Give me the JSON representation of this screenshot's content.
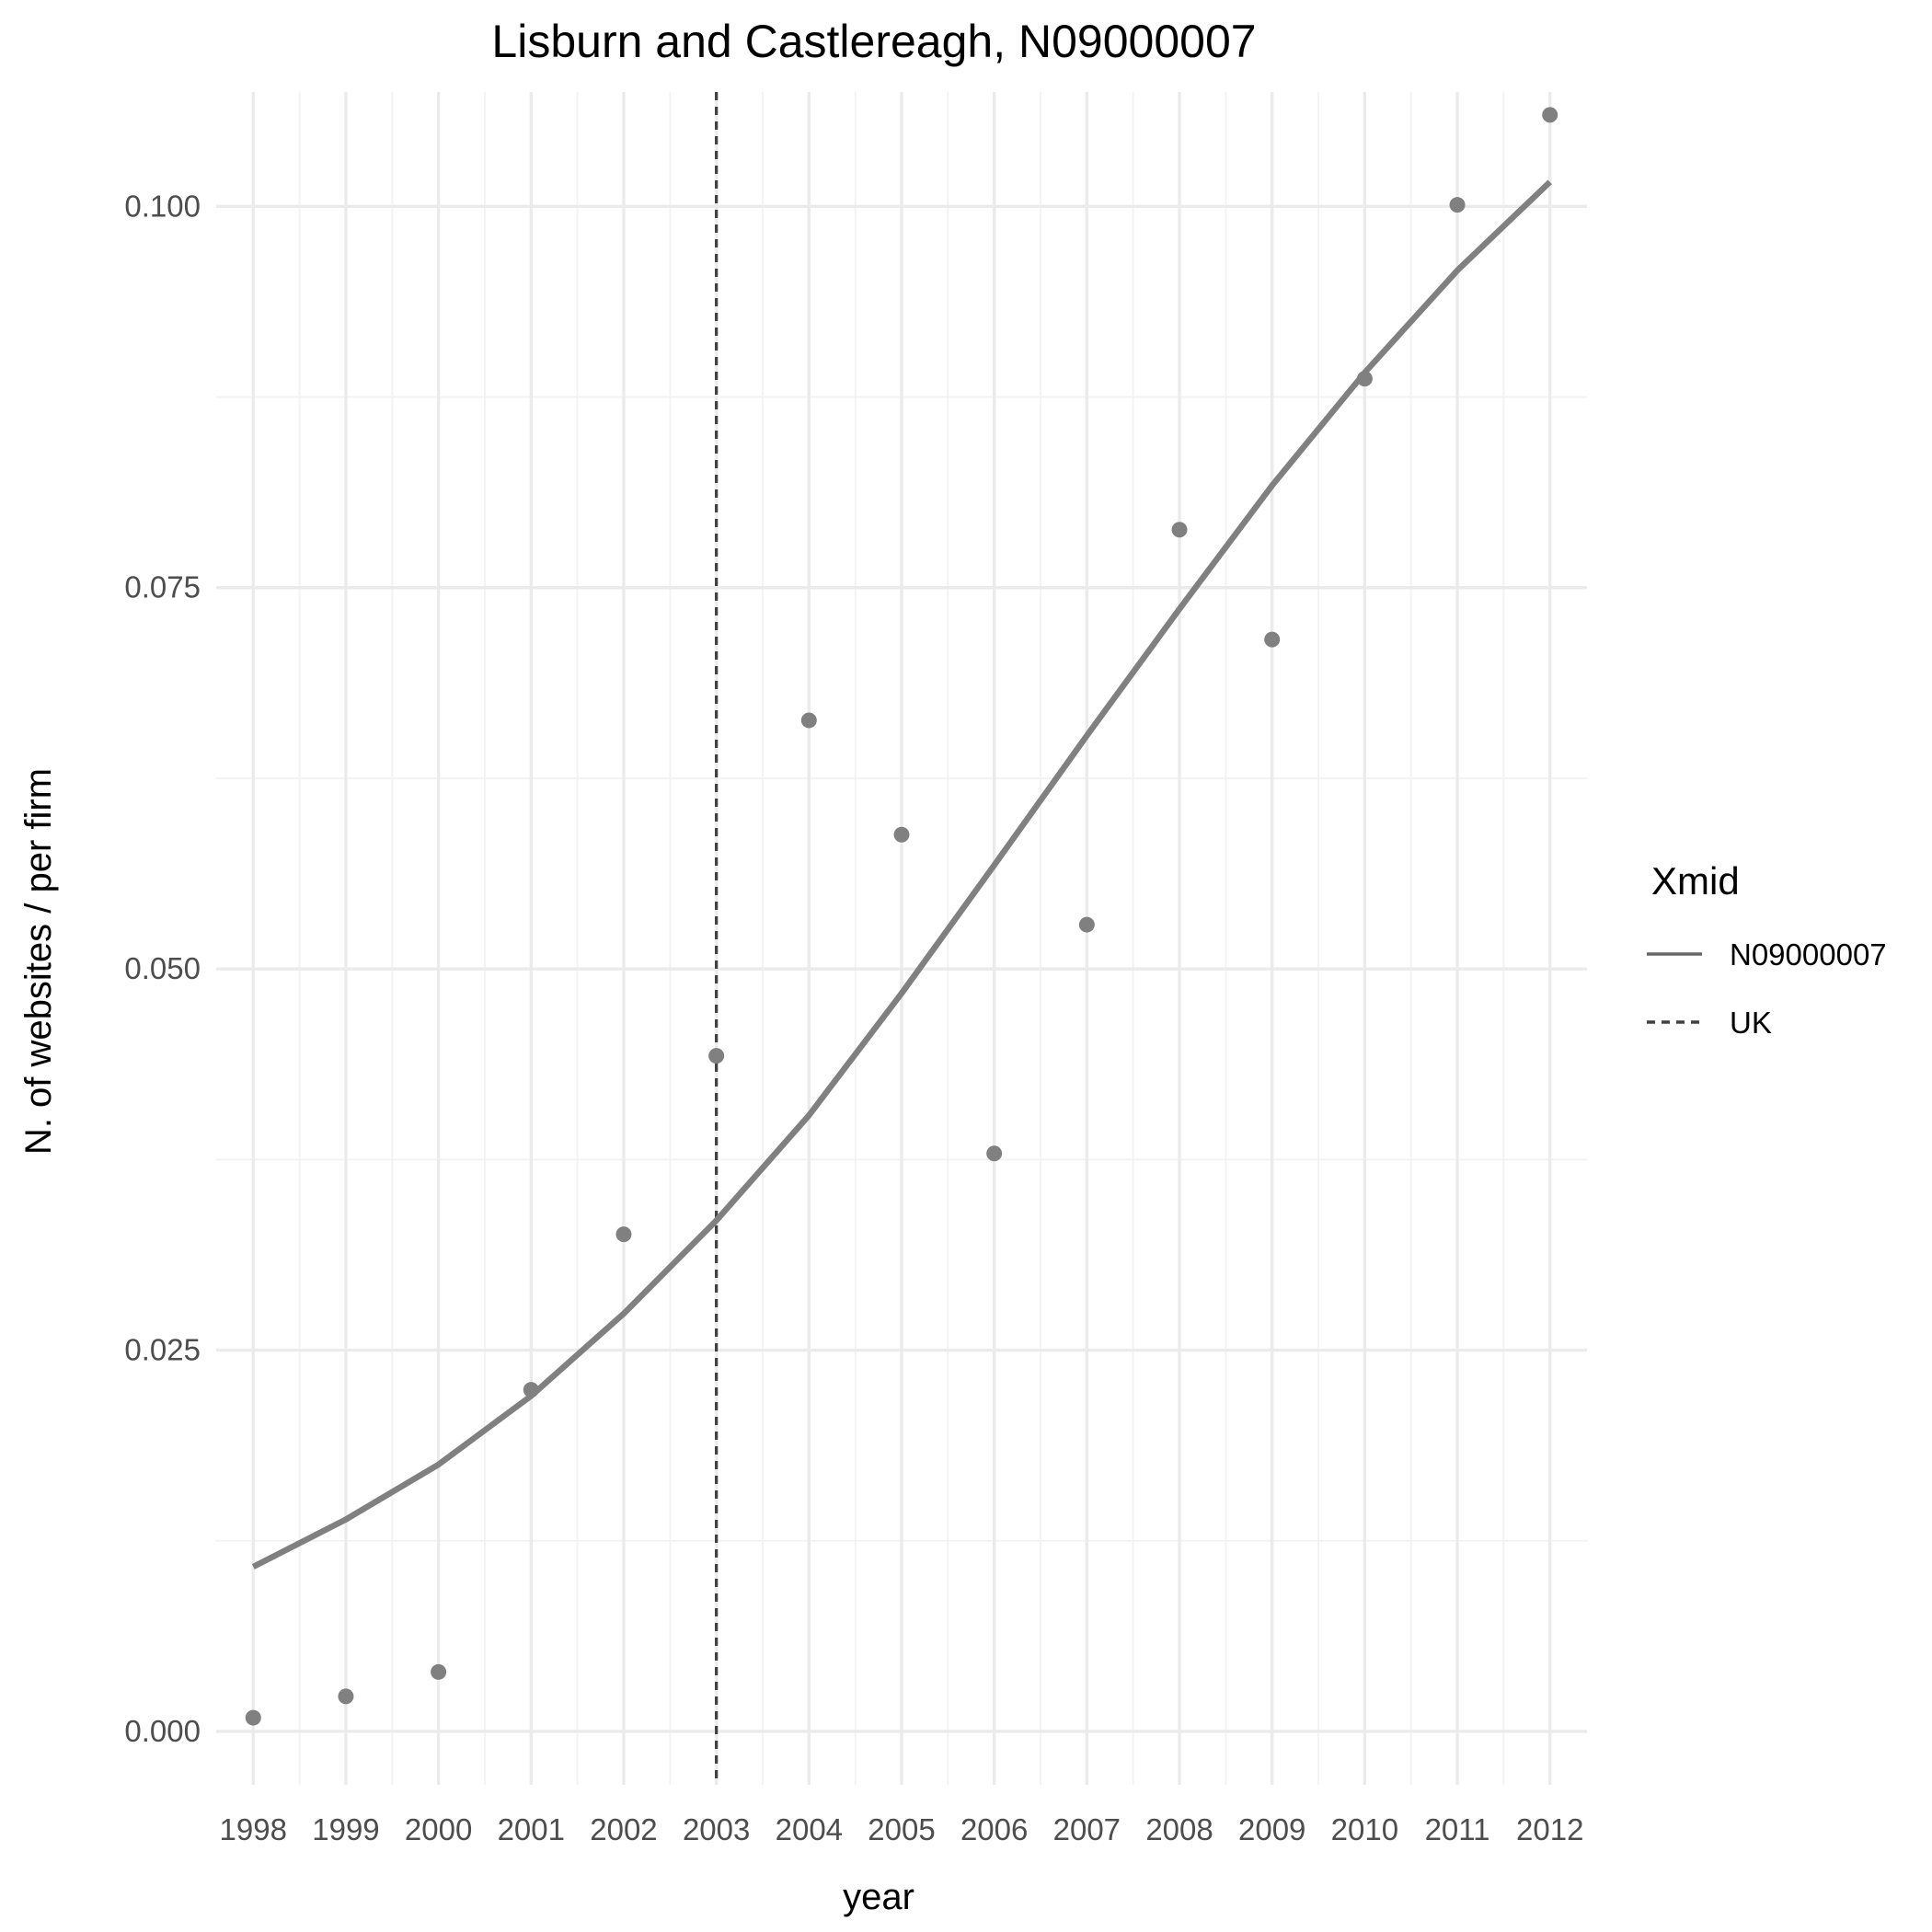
{
  "chart_data": {
    "type": "scatter",
    "title": "Lisburn and Castlereagh, N09000007",
    "xlabel": "year",
    "ylabel": "N. of websites / per firm",
    "xlim": [
      1997.6,
      2012.4
    ],
    "ylim": [
      -0.0035,
      0.1075
    ],
    "x_ticks": [
      "1998",
      "1999",
      "2000",
      "2001",
      "2002",
      "2003",
      "2004",
      "2005",
      "2006",
      "2007",
      "2008",
      "2009",
      "2010",
      "2011",
      "2012"
    ],
    "y_ticks": [
      0.0,
      0.025,
      0.05,
      0.075,
      0.1
    ],
    "y_tick_labels": [
      "0.000",
      "0.025",
      "0.050",
      "0.075",
      "0.100"
    ],
    "grid": true,
    "points": {
      "x": [
        1998,
        1999,
        2000,
        2001,
        2002,
        2003,
        2004,
        2005,
        2006,
        2007,
        2008,
        2009,
        2010,
        2011,
        2012
      ],
      "y": [
        0.0009,
        0.0023,
        0.0039,
        0.0224,
        0.0326,
        0.0443,
        0.0663,
        0.0588,
        0.0379,
        0.0529,
        0.0788,
        0.0716,
        0.0887,
        0.1001,
        0.106
      ],
      "color": "#808080"
    },
    "series": [
      {
        "name": "N09000007",
        "style": "solid",
        "color": "#808080",
        "x": [
          1998,
          1999,
          2000,
          2001,
          2002,
          2003,
          2004,
          2005,
          2006,
          2007,
          2008,
          2009,
          2010,
          2011,
          2012
        ],
        "y": [
          0.0108,
          0.0139,
          0.0175,
          0.022,
          0.0274,
          0.0335,
          0.0404,
          0.0484,
          0.0568,
          0.0653,
          0.0736,
          0.0817,
          0.0891,
          0.0958,
          0.1016
        ]
      }
    ],
    "vline": {
      "x": 2003,
      "style": "dashed",
      "color": "#404040",
      "name": "UK"
    },
    "legend": {
      "title": "Xmid",
      "position": "right",
      "items": [
        {
          "label": "N09000007",
          "style": "solid",
          "color": "#666666"
        },
        {
          "label": "UK",
          "style": "dashed",
          "color": "#404040"
        }
      ]
    }
  }
}
